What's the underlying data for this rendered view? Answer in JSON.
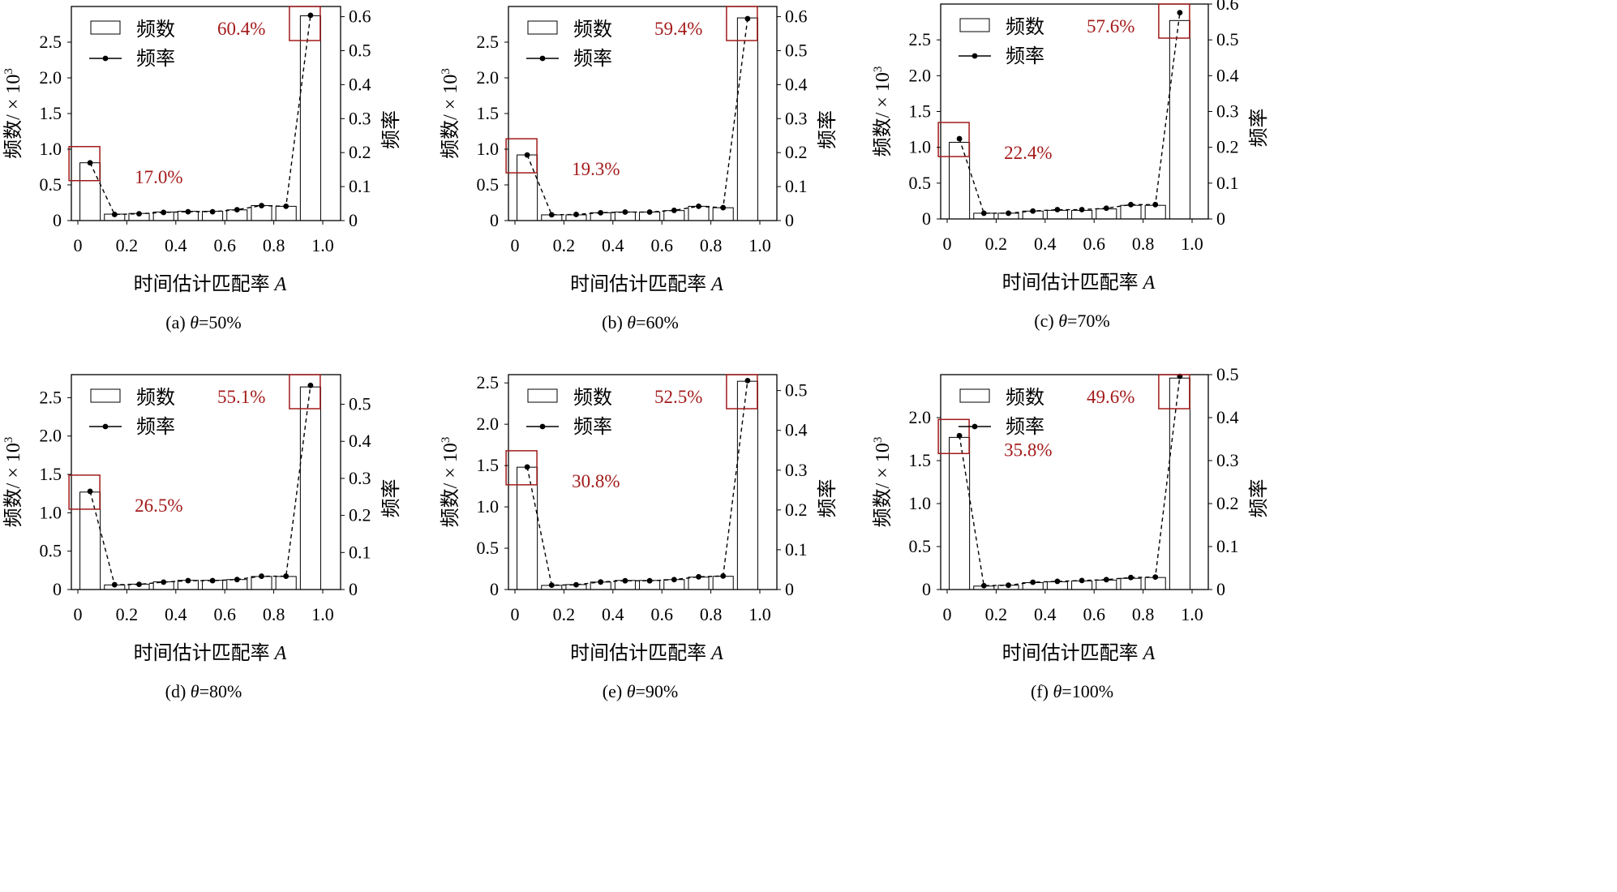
{
  "legend": {
    "count_label": "频数",
    "freq_label": "频率"
  },
  "axes": {
    "xlabel_main": "时间估计匹配率",
    "xlabel_var": "A",
    "ylabel_left": "频数/ × 10",
    "ylabel_left_sup": "3",
    "ylabel_right": "频率"
  },
  "colors": {
    "highlight": "#a31b1b",
    "bar_fill": "#ffffff",
    "stroke": "#000000"
  },
  "chart_data": [
    {
      "type": "bar",
      "caption_prefix": "(a) ",
      "caption_theta": "θ",
      "caption_suffix": "=50%",
      "x": [
        0.05,
        0.15,
        0.25,
        0.35,
        0.45,
        0.55,
        0.65,
        0.75,
        0.85,
        0.95
      ],
      "counts": [
        0.81,
        0.09,
        0.1,
        0.12,
        0.13,
        0.13,
        0.15,
        0.21,
        0.2,
        2.87
      ],
      "freq": [
        0.17,
        0.018,
        0.02,
        0.024,
        0.026,
        0.026,
        0.032,
        0.044,
        0.042,
        0.604
      ],
      "ylim_left": [
        0,
        3.0
      ],
      "yticks_left": [
        0,
        0.5,
        1.0,
        1.5,
        2.0,
        2.5
      ],
      "ylim_right": [
        0,
        0.63
      ],
      "yticks_right": [
        0,
        0.1,
        0.2,
        0.3,
        0.4,
        0.5,
        0.6
      ],
      "xticks": [
        0,
        0.2,
        0.4,
        0.6,
        0.8,
        1.0
      ],
      "annotations": [
        {
          "bin": 0,
          "text": "17.0%"
        },
        {
          "bin": 9,
          "text": "60.4%"
        }
      ]
    },
    {
      "type": "bar",
      "caption_prefix": "(b) ",
      "caption_theta": "θ",
      "caption_suffix": "=60%",
      "x": [
        0.05,
        0.15,
        0.25,
        0.35,
        0.45,
        0.55,
        0.65,
        0.75,
        0.85,
        0.95
      ],
      "counts": [
        0.92,
        0.08,
        0.08,
        0.11,
        0.12,
        0.12,
        0.14,
        0.2,
        0.18,
        2.84
      ],
      "freq": [
        0.193,
        0.017,
        0.018,
        0.023,
        0.025,
        0.025,
        0.03,
        0.042,
        0.038,
        0.594
      ],
      "ylim_left": [
        0,
        3.0
      ],
      "yticks_left": [
        0,
        0.5,
        1.0,
        1.5,
        2.0,
        2.5
      ],
      "ylim_right": [
        0,
        0.63
      ],
      "yticks_right": [
        0,
        0.1,
        0.2,
        0.3,
        0.4,
        0.5,
        0.6
      ],
      "xticks": [
        0,
        0.2,
        0.4,
        0.6,
        0.8,
        1.0
      ],
      "annotations": [
        {
          "bin": 0,
          "text": "19.3%"
        },
        {
          "bin": 9,
          "text": "59.4%"
        }
      ]
    },
    {
      "type": "bar",
      "caption_prefix": "(c) ",
      "caption_theta": "θ",
      "caption_suffix": "=70%",
      "x": [
        0.05,
        0.15,
        0.25,
        0.35,
        0.45,
        0.55,
        0.65,
        0.75,
        0.85,
        0.95
      ],
      "counts": [
        1.07,
        0.08,
        0.08,
        0.11,
        0.12,
        0.12,
        0.14,
        0.19,
        0.19,
        2.77
      ],
      "freq": [
        0.224,
        0.016,
        0.016,
        0.022,
        0.026,
        0.026,
        0.03,
        0.04,
        0.04,
        0.576
      ],
      "ylim_left": [
        0,
        3.0
      ],
      "yticks_left": [
        0,
        0.5,
        1.0,
        1.5,
        2.0,
        2.5
      ],
      "ylim_right": [
        0,
        0.6
      ],
      "yticks_right": [
        0,
        0.1,
        0.2,
        0.3,
        0.4,
        0.5,
        0.6
      ],
      "xticks": [
        0,
        0.2,
        0.4,
        0.6,
        0.8,
        1.0
      ],
      "annotations": [
        {
          "bin": 0,
          "text": "22.4%"
        },
        {
          "bin": 9,
          "text": "57.6%"
        }
      ]
    },
    {
      "type": "bar",
      "caption_prefix": "(d) ",
      "caption_theta": "θ",
      "caption_suffix": "=80%",
      "x": [
        0.05,
        0.15,
        0.25,
        0.35,
        0.45,
        0.55,
        0.65,
        0.75,
        0.85,
        0.95
      ],
      "counts": [
        1.27,
        0.06,
        0.07,
        0.1,
        0.12,
        0.12,
        0.13,
        0.17,
        0.17,
        2.64
      ],
      "freq": [
        0.265,
        0.013,
        0.014,
        0.02,
        0.024,
        0.024,
        0.027,
        0.036,
        0.036,
        0.551
      ],
      "ylim_left": [
        0,
        2.8
      ],
      "yticks_left": [
        0,
        0.5,
        1.0,
        1.5,
        2.0,
        2.5
      ],
      "ylim_right": [
        0,
        0.58
      ],
      "yticks_right": [
        0,
        0.1,
        0.2,
        0.3,
        0.4,
        0.5
      ],
      "xticks": [
        0,
        0.2,
        0.4,
        0.6,
        0.8,
        1.0
      ],
      "annotations": [
        {
          "bin": 0,
          "text": "26.5%"
        },
        {
          "bin": 9,
          "text": "55.1%"
        }
      ]
    },
    {
      "type": "bar",
      "caption_prefix": "(e) ",
      "caption_theta": "θ",
      "caption_suffix": "=90%",
      "x": [
        0.05,
        0.15,
        0.25,
        0.35,
        0.45,
        0.55,
        0.65,
        0.75,
        0.85,
        0.95
      ],
      "counts": [
        1.48,
        0.05,
        0.06,
        0.09,
        0.11,
        0.11,
        0.12,
        0.15,
        0.16,
        2.52
      ],
      "freq": [
        0.308,
        0.011,
        0.012,
        0.019,
        0.022,
        0.022,
        0.025,
        0.032,
        0.034,
        0.525
      ],
      "ylim_left": [
        0,
        2.6
      ],
      "yticks_left": [
        0,
        0.5,
        1.0,
        1.5,
        2.0,
        2.5
      ],
      "ylim_right": [
        0,
        0.54
      ],
      "yticks_right": [
        0,
        0.1,
        0.2,
        0.3,
        0.4,
        0.5
      ],
      "xticks": [
        0,
        0.2,
        0.4,
        0.6,
        0.8,
        1.0
      ],
      "annotations": [
        {
          "bin": 0,
          "text": "30.8%"
        },
        {
          "bin": 9,
          "text": "52.5%"
        }
      ]
    },
    {
      "type": "bar",
      "caption_prefix": "(f) ",
      "caption_theta": "θ",
      "caption_suffix": "=100%",
      "x": [
        0.05,
        0.15,
        0.25,
        0.35,
        0.45,
        0.55,
        0.65,
        0.75,
        0.85,
        0.95
      ],
      "counts": [
        1.77,
        0.04,
        0.05,
        0.08,
        0.09,
        0.1,
        0.11,
        0.13,
        0.14,
        2.46
      ],
      "freq": [
        0.358,
        0.009,
        0.01,
        0.017,
        0.019,
        0.021,
        0.023,
        0.028,
        0.029,
        0.496
      ],
      "ylim_left": [
        0,
        2.5
      ],
      "yticks_left": [
        0,
        0.5,
        1.0,
        1.5,
        2.0
      ],
      "ylim_right": [
        0,
        0.5
      ],
      "yticks_right": [
        0,
        0.1,
        0.2,
        0.3,
        0.4,
        0.5
      ],
      "xticks": [
        0,
        0.2,
        0.4,
        0.6,
        0.8,
        1.0
      ],
      "annotations": [
        {
          "bin": 0,
          "text": "35.8%"
        },
        {
          "bin": 9,
          "text": "49.6%"
        }
      ]
    }
  ]
}
